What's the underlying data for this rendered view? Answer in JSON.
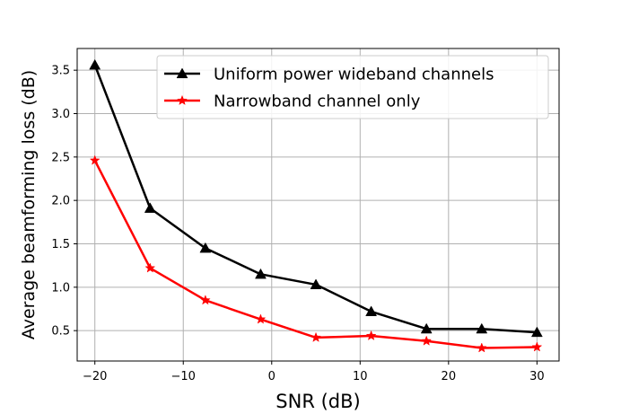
{
  "chart_data": {
    "type": "line",
    "xlabel": "SNR (dB)",
    "ylabel": "Average beamforming loss (dB)",
    "xlim": [
      -22,
      32.5
    ],
    "ylim": [
      0.15,
      3.75
    ],
    "xticks": [
      -20,
      -10,
      0,
      10,
      20,
      30
    ],
    "xtick_labels": [
      "−20",
      "−10",
      "0",
      "10",
      "20",
      "30"
    ],
    "yticks": [
      0.5,
      1.0,
      1.5,
      2.0,
      2.5,
      3.0,
      3.5
    ],
    "ytick_labels": [
      "0.5",
      "1.0",
      "1.5",
      "2.0",
      "2.5",
      "3.0",
      "3.5"
    ],
    "grid": true,
    "legend_position": "top-right",
    "series": [
      {
        "name": "Uniform power wideband channels",
        "color": "#000000",
        "marker": "triangle",
        "x": [
          -20,
          -13.75,
          -7.5,
          -1.25,
          5,
          11.25,
          17.5,
          23.75,
          30
        ],
        "y": [
          3.56,
          1.91,
          1.45,
          1.15,
          1.03,
          0.72,
          0.52,
          0.52,
          0.48
        ]
      },
      {
        "name": "Narrowband channel only",
        "color": "#ff0000",
        "marker": "star",
        "x": [
          -20,
          -13.75,
          -7.5,
          -1.25,
          5,
          11.25,
          17.5,
          23.75,
          30
        ],
        "y": [
          2.46,
          1.22,
          0.85,
          0.63,
          0.42,
          0.44,
          0.38,
          0.3,
          0.31
        ]
      }
    ]
  }
}
